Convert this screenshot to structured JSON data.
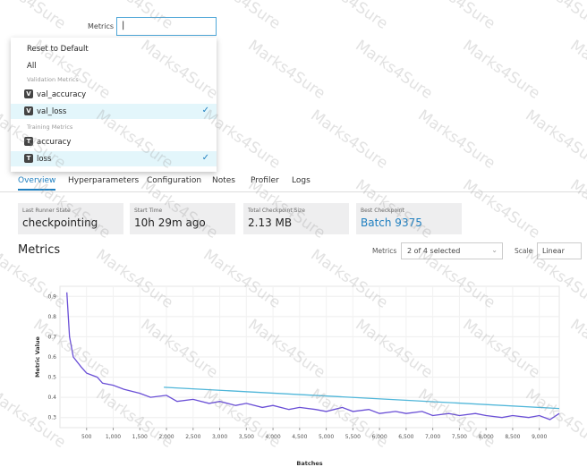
{
  "metrics_filter": {
    "label": "Metrics",
    "menu_actions": [
      "Reset to Default",
      "All"
    ],
    "groups": [
      {
        "title": "Validation Metrics",
        "options": [
          {
            "badge": "V",
            "name": "val_accuracy",
            "selected": false
          },
          {
            "badge": "V",
            "name": "val_loss",
            "selected": true
          }
        ]
      },
      {
        "title": "Training Metrics",
        "options": [
          {
            "badge": "T",
            "name": "accuracy",
            "selected": false
          },
          {
            "badge": "T",
            "name": "loss",
            "selected": true
          }
        ]
      }
    ]
  },
  "tabs": [
    "Overview",
    "Hyperparameters",
    "Configuration",
    "Notes",
    "Profiler",
    "Logs"
  ],
  "summary": [
    {
      "label": "Last Runner State",
      "value": "checkpointing"
    },
    {
      "label": "Start Time",
      "value": "10h 29m ago"
    },
    {
      "label": "Total Checkpoint Size",
      "value": "2.13 MB"
    },
    {
      "label": "Best Checkpoint",
      "value": "Batch 9375"
    }
  ],
  "metrics_section": {
    "title": "Metrics",
    "filter_label": "Metrics",
    "filter_value": "2 of 4 selected",
    "scale_label": "Scale",
    "scale_value": "Linear"
  },
  "watermark": "Marks4Sure",
  "chart_data": {
    "type": "line",
    "xlabel": "Batches",
    "ylabel": "Metric Value",
    "series": [
      {
        "color": "#6a4fd6",
        "x": [
          130,
          180,
          250,
          400,
          500,
          700,
          800,
          1000,
          1200,
          1500,
          1700,
          2000,
          2200,
          2500,
          2800,
          3000,
          3300,
          3500,
          3800,
          4000,
          4300,
          4500,
          4800,
          5000,
          5300,
          5500,
          5800,
          6000,
          6300,
          6500,
          6800,
          7000,
          7300,
          7500,
          7800,
          8000,
          8300,
          8500,
          8800,
          9000,
          9200,
          9375
        ],
        "values": [
          0.92,
          0.7,
          0.6,
          0.55,
          0.52,
          0.5,
          0.47,
          0.46,
          0.44,
          0.42,
          0.4,
          0.41,
          0.38,
          0.39,
          0.37,
          0.38,
          0.36,
          0.37,
          0.35,
          0.36,
          0.34,
          0.35,
          0.34,
          0.33,
          0.35,
          0.33,
          0.34,
          0.32,
          0.33,
          0.32,
          0.33,
          0.31,
          0.32,
          0.31,
          0.32,
          0.31,
          0.3,
          0.31,
          0.3,
          0.31,
          0.29,
          0.32
        ]
      },
      {
        "color": "#4fb6d9",
        "x": [
          1950,
          9375
        ],
        "values": [
          0.45,
          0.345
        ]
      }
    ],
    "xlim": [
      0,
      9375
    ],
    "ylim": [
      0.25,
      0.95
    ],
    "xticks": [
      500,
      {
        "value": 1000,
        "label": "1,000"
      },
      {
        "value": 1500,
        "label": "1,500"
      },
      {
        "value": 2000,
        "label": "2,000"
      },
      {
        "value": 2500,
        "label": "2,500"
      },
      {
        "value": 3000,
        "label": "3,000"
      },
      {
        "value": 3500,
        "label": "3,500"
      },
      {
        "value": 4000,
        "label": "4,000"
      },
      {
        "value": 4500,
        "label": "4,500"
      },
      {
        "value": 5000,
        "label": "5,000"
      },
      {
        "value": 5500,
        "label": "5,500"
      },
      {
        "value": 6000,
        "label": "6,000"
      },
      {
        "value": 6500,
        "label": "6,500"
      },
      {
        "value": 7000,
        "label": "7,000"
      },
      {
        "value": 7500,
        "label": "7,500"
      },
      {
        "value": 8000,
        "label": "8,000"
      },
      {
        "value": 8500,
        "label": "8,500"
      },
      {
        "value": 9000,
        "label": "9,000"
      }
    ],
    "yticks": [
      0.3,
      0.4,
      0.5,
      0.6,
      0.7,
      0.8,
      0.9
    ],
    "grid": true
  }
}
